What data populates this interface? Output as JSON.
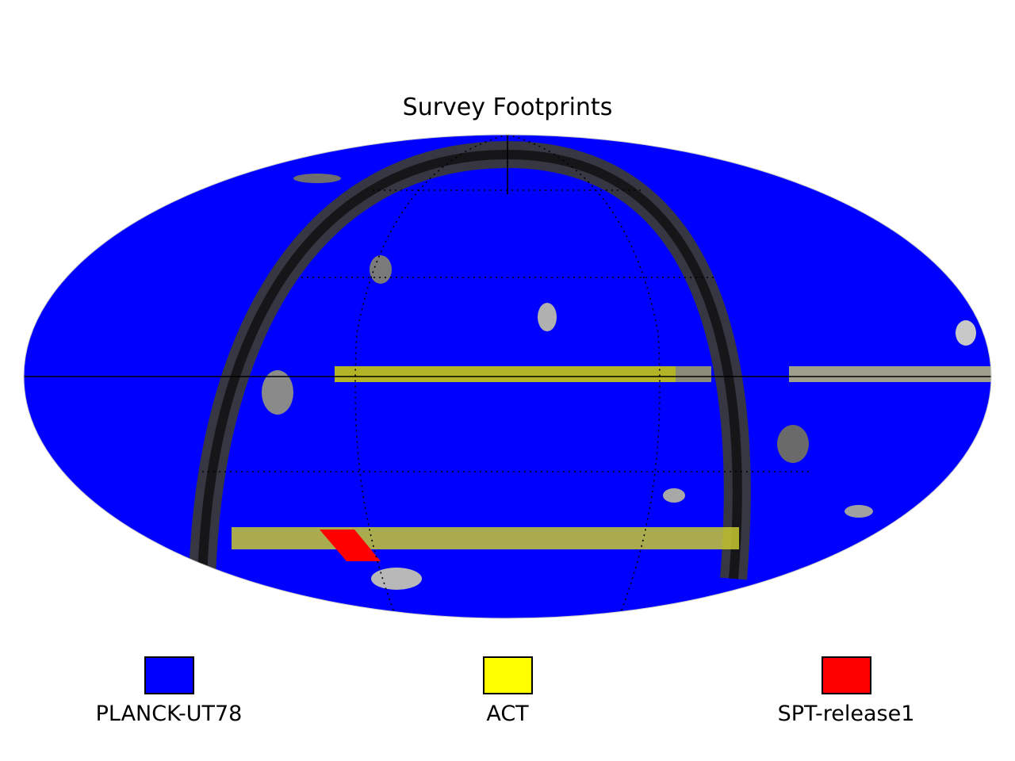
{
  "map": {
    "title": "Survey Footprints",
    "projection": "mollweide",
    "background_map": "grayscale all-sky dust map"
  },
  "legend": [
    {
      "label": "PLANCK-UT78",
      "color": "#0000ff"
    },
    {
      "label": "ACT",
      "color": "#ffff00"
    },
    {
      "label": "SPT-release1",
      "color": "#ff0000"
    }
  ],
  "colors": {
    "planck": "#0000ff",
    "act": "#ffff00",
    "spt": "#ff0000",
    "dust": "#4a4a4a",
    "graticule": "#000000"
  }
}
